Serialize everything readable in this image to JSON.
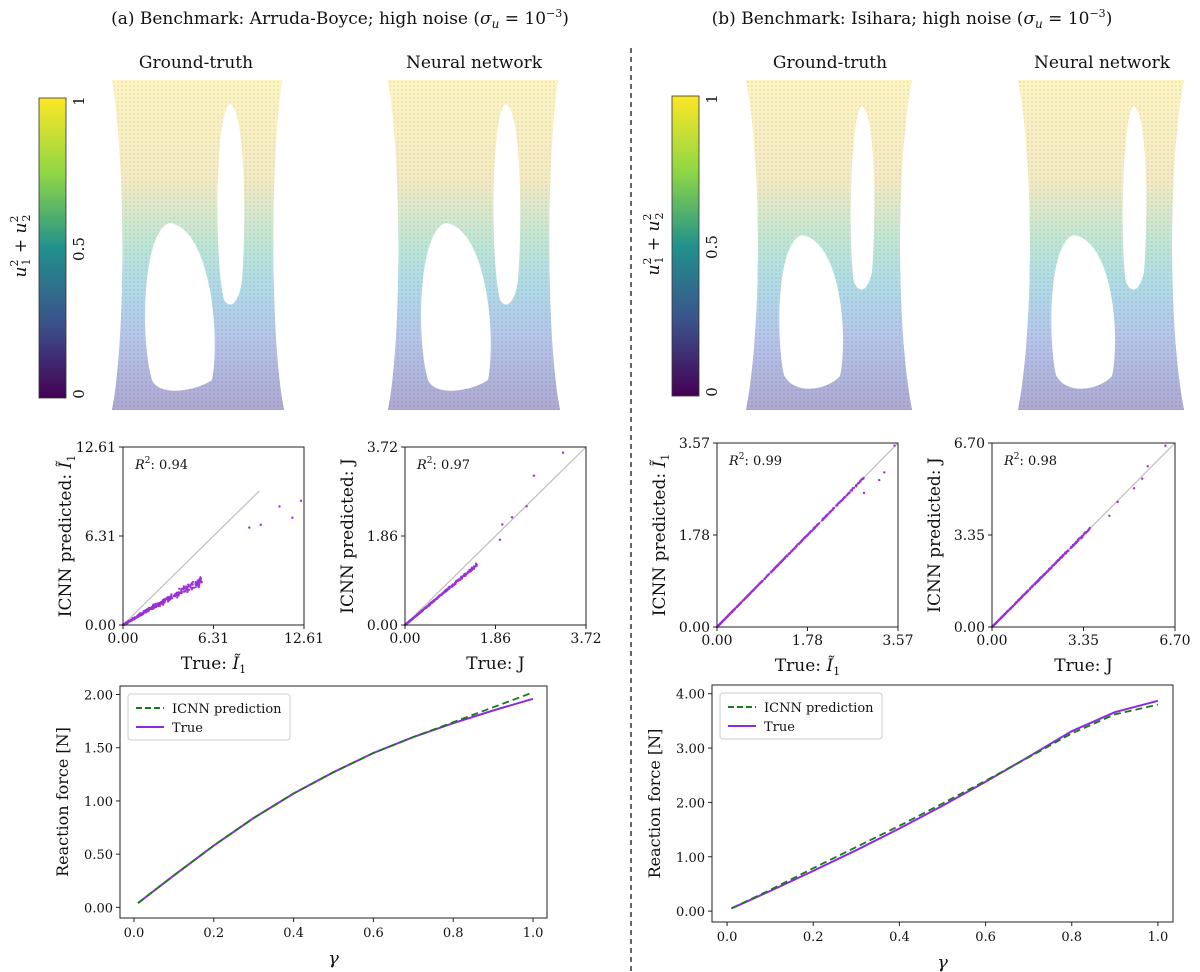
{
  "panels": [
    {
      "title_main": "(a) Benchmark: Arruda-Boyce; high noise (",
      "title_sigma": "σ",
      "title_sub": "u",
      "title_eq": " = 10",
      "title_exp": "−3",
      "title_close": ")",
      "field_titles": [
        "Ground-truth",
        "Neural network"
      ],
      "colorbar": {
        "ticks": [
          "1",
          "0.5",
          "0"
        ],
        "label_u1": "u",
        "label_u2": "u",
        "colors": [
          "#fde725",
          "#5ec962",
          "#21918c",
          "#3b528b",
          "#440154"
        ]
      },
      "specimen": {
        "hole_left_top": 0.38,
        "hole_right_top": 0.03
      }
    },
    {
      "title_main": "(b) Benchmark: Isihara; high noise (",
      "title_sigma": "σ",
      "title_sub": "u",
      "title_eq": " = 10",
      "title_exp": "−3",
      "title_close": ")",
      "field_titles": [
        "Ground-truth",
        "Neural network"
      ],
      "colorbar": {
        "ticks": [
          "1",
          "0.5",
          "0"
        ],
        "label_u1": "u",
        "label_u2": "u",
        "colors": [
          "#fde725",
          "#5ec962",
          "#21918c",
          "#3b528b",
          "#440154"
        ]
      },
      "specimen": {
        "hole_left_top": 0.45,
        "hole_right_top": 0.03
      }
    }
  ],
  "chart_data": [
    {
      "type": "scatter",
      "id": "a-I1",
      "ylabel": "ICNN predicted:",
      "ylabel_sym": "Ĩ",
      "ylabel_sub": "1",
      "xlabel": "True:",
      "xlabel_sym": "Ĩ",
      "xlabel_sub": "1",
      "ticks": [
        "0.00",
        "6.31",
        "12.61"
      ],
      "xlim": [
        0,
        12.61
      ],
      "ylim": [
        0,
        12.61
      ],
      "r2_label": "R",
      "r2_value": ": 0.94",
      "identity_line": [
        0,
        9.5
      ],
      "slope": 0.62,
      "curve": -0.1,
      "spread": 0.35,
      "n": 380,
      "xmax_dense": 5.5,
      "outliers": [
        [
          12.4,
          8.8
        ],
        [
          11.8,
          7.6
        ],
        [
          10.9,
          8.4
        ],
        [
          9.6,
          7.1
        ],
        [
          8.8,
          6.9
        ]
      ]
    },
    {
      "type": "scatter",
      "id": "a-J",
      "ylabel": "ICNN predicted:",
      "ylabel_sym": "J",
      "ylabel_sub": "",
      "xlabel": "True:",
      "xlabel_sym": "J",
      "xlabel_sub": "",
      "ticks": [
        "0.00",
        "1.86",
        "3.72"
      ],
      "xlim": [
        0,
        3.72
      ],
      "ylim": [
        0,
        3.72
      ],
      "r2_label": "R",
      "r2_value": ": 0.97",
      "identity_line": [
        0,
        3.72
      ],
      "slope": 0.85,
      "curve": 0.0,
      "spread": 0.12,
      "n": 380,
      "xmax_dense": 1.5,
      "outliers": [
        [
          3.25,
          3.6
        ],
        [
          2.65,
          3.12
        ],
        [
          2.5,
          2.48
        ],
        [
          2.2,
          2.25
        ],
        [
          2.0,
          2.1
        ],
        [
          1.95,
          1.78
        ]
      ]
    },
    {
      "type": "scatter",
      "id": "b-I1",
      "ylabel": "ICNN predicted:",
      "ylabel_sym": "Ĩ",
      "ylabel_sub": "1",
      "xlabel": "True:",
      "xlabel_sym": "Ĩ",
      "xlabel_sub": "1",
      "ticks": [
        "0.00",
        "1.78",
        "3.57"
      ],
      "xlim": [
        0,
        3.57
      ],
      "ylim": [
        0,
        3.57
      ],
      "r2_label": "R",
      "r2_value": ": 0.99",
      "identity_line": [
        0,
        3.57
      ],
      "slope": 1.0,
      "curve": 0.0,
      "spread": 0.06,
      "n": 520,
      "xmax_dense": 2.9,
      "outliers": [
        [
          3.5,
          3.52
        ],
        [
          3.2,
          2.85
        ],
        [
          3.3,
          3.0
        ],
        [
          2.9,
          2.6
        ]
      ]
    },
    {
      "type": "scatter",
      "id": "b-J",
      "ylabel": "ICNN predicted:",
      "ylabel_sym": "J",
      "ylabel_sub": "",
      "xlabel": "True:",
      "xlabel_sym": "J",
      "xlabel_sub": "",
      "ticks": [
        "0.00",
        "3.35",
        "6.70"
      ],
      "xlim": [
        0,
        6.7
      ],
      "ylim": [
        0,
        6.7
      ],
      "r2_label": "R",
      "r2_value": ": 0.98",
      "identity_line": [
        0,
        6.7
      ],
      "slope": 1.0,
      "curve": 0.0,
      "spread": 0.08,
      "n": 420,
      "xmax_dense": 3.6,
      "outliers": [
        [
          6.35,
          6.6
        ],
        [
          5.7,
          5.85
        ],
        [
          5.5,
          5.4
        ],
        [
          5.2,
          5.05
        ],
        [
          4.6,
          4.55
        ],
        [
          4.3,
          4.05
        ]
      ]
    },
    {
      "type": "line",
      "id": "a-force",
      "xlabel": "γ",
      "ylabel": "Reaction force [N]",
      "xlim": [
        0,
        1
      ],
      "ylim": [
        0,
        2.0
      ],
      "xticks": [
        "0.0",
        "0.2",
        "0.4",
        "0.6",
        "0.8",
        "1.0"
      ],
      "yticks": [
        "0.00",
        "0.50",
        "1.00",
        "1.50",
        "2.00"
      ],
      "legend": [
        "ICNN prediction",
        "True"
      ],
      "x": [
        0.01,
        0.1,
        0.2,
        0.3,
        0.4,
        0.5,
        0.6,
        0.7,
        0.8,
        0.9,
        1.0
      ],
      "series": [
        {
          "name": "ICNN prediction",
          "color": "#1a7a1a",
          "dash": true,
          "values": [
            0.04,
            0.3,
            0.58,
            0.84,
            1.07,
            1.27,
            1.45,
            1.6,
            1.74,
            1.88,
            2.02
          ]
        },
        {
          "name": "True",
          "color": "#8a2be2",
          "dash": false,
          "values": [
            0.04,
            0.3,
            0.58,
            0.84,
            1.07,
            1.27,
            1.45,
            1.6,
            1.73,
            1.85,
            1.96
          ]
        }
      ]
    },
    {
      "type": "line",
      "id": "b-force",
      "xlabel": "γ",
      "ylabel": "Reaction force [N]",
      "xlim": [
        0,
        1
      ],
      "ylim": [
        0,
        4.0
      ],
      "xticks": [
        "0.0",
        "0.2",
        "0.4",
        "0.6",
        "0.8",
        "1.0"
      ],
      "yticks": [
        "0.00",
        "1.00",
        "2.00",
        "3.00",
        "4.00"
      ],
      "legend": [
        "ICNN prediction",
        "True"
      ],
      "x": [
        0.01,
        0.1,
        0.2,
        0.3,
        0.4,
        0.5,
        0.6,
        0.7,
        0.8,
        0.9,
        1.0
      ],
      "series": [
        {
          "name": "ICNN prediction",
          "color": "#1a7a1a",
          "dash": true,
          "values": [
            0.05,
            0.39,
            0.79,
            1.18,
            1.57,
            1.98,
            2.4,
            2.83,
            3.27,
            3.62,
            3.8
          ]
        },
        {
          "name": "True",
          "color": "#8a2be2",
          "dash": false,
          "values": [
            0.05,
            0.37,
            0.74,
            1.12,
            1.52,
            1.94,
            2.38,
            2.84,
            3.31,
            3.66,
            3.87
          ]
        }
      ]
    }
  ]
}
